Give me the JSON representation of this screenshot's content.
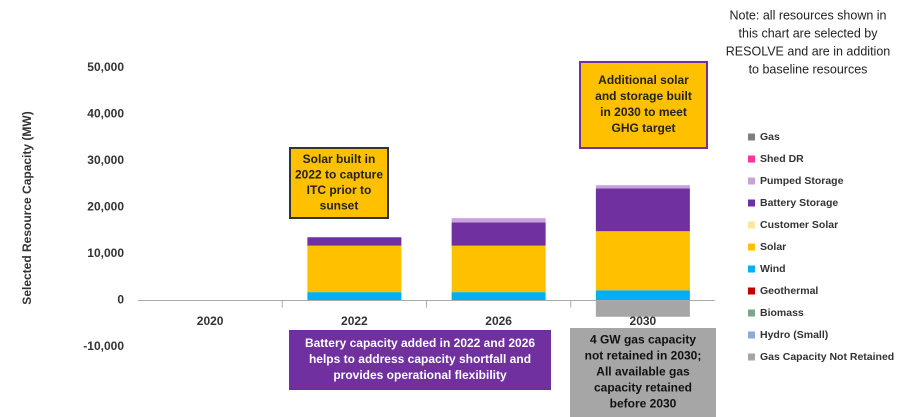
{
  "chart_data": {
    "type": "stacked_bar",
    "y_axis_label": "Selected Resource Capacity (MW)",
    "categories": [
      "2020",
      "2022",
      "2026",
      "2030"
    ],
    "ylim": [
      -10000,
      50000
    ],
    "yticks": [
      {
        "value": -10000,
        "label": "-10,000"
      },
      0,
      {
        "value": 10000,
        "label": "10,000"
      },
      {
        "value": 20000,
        "label": "20,000"
      },
      {
        "value": 30000,
        "label": "30,000"
      },
      {
        "value": 40000,
        "label": "40,000"
      },
      {
        "value": 50000,
        "label": "50,000"
      }
    ],
    "series": [
      {
        "name": "Gas",
        "color": "#7f7f7f",
        "values": [
          0,
          0,
          0,
          0
        ]
      },
      {
        "name": "Shed DR",
        "color": "#ff3399",
        "values": [
          0,
          0,
          0,
          0
        ]
      },
      {
        "name": "Pumped Storage",
        "color": "#c9a0e0",
        "values": [
          0,
          0,
          900,
          700
        ]
      },
      {
        "name": "Battery Storage",
        "color": "#7030a0",
        "values": [
          0,
          1800,
          5000,
          9200
        ]
      },
      {
        "name": "Customer Solar",
        "color": "#ffe699",
        "values": [
          0,
          0,
          0,
          0
        ]
      },
      {
        "name": "Solar",
        "color": "#ffc000",
        "values": [
          0,
          10000,
          10000,
          12700
        ]
      },
      {
        "name": "Wind",
        "color": "#00b0f0",
        "values": [
          0,
          1800,
          1800,
          2200
        ]
      },
      {
        "name": "Geothermal",
        "color": "#c00000",
        "values": [
          0,
          0,
          0,
          0
        ]
      },
      {
        "name": "Biomass",
        "color": "#77a88a",
        "values": [
          0,
          0,
          0,
          0
        ]
      },
      {
        "name": "Hydro (Small)",
        "color": "#8eaadb",
        "values": [
          0,
          0,
          0,
          0
        ]
      },
      {
        "name": "Gas Capacity Not Retained",
        "color": "#a6a6a6",
        "values": [
          0,
          0,
          0,
          -3500
        ]
      }
    ],
    "note": [
      "Note: all resources shown in",
      "this chart are selected by",
      "RESOLVE and are in addition",
      "to baseline resources"
    ],
    "annotations": [
      {
        "lines": [
          "Solar built in",
          "2022 to capture",
          "ITC prior to",
          "sunset"
        ]
      },
      {
        "lines": [
          "Additional solar",
          "and storage built",
          "in 2030 to meet",
          "GHG target"
        ]
      },
      {
        "lines": [
          "Battery capacity added in 2022 and 2026",
          "helps to address capacity shortfall and",
          "provides operational flexibility"
        ]
      },
      {
        "lines": [
          "4 GW gas capacity",
          "not retained in 2030;",
          "All available gas",
          "capacity retained",
          "before 2030"
        ]
      }
    ]
  }
}
